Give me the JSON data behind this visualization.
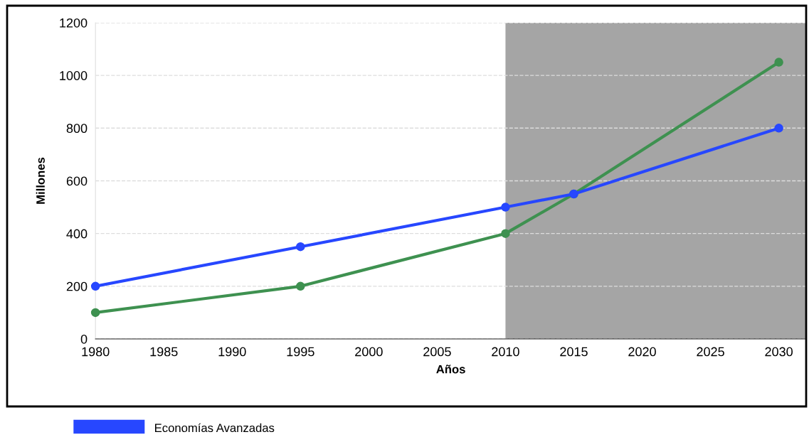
{
  "chart_data": {
    "type": "line",
    "xlabel": "Años",
    "ylabel": "Millones",
    "series": [
      {
        "name": "Economías Avanzadas",
        "color": "#2747ff",
        "x": [
          1980,
          1995,
          2010,
          2015,
          2030
        ],
        "values": [
          200,
          350,
          500,
          550,
          800
        ]
      },
      {
        "color": "#3e9150",
        "x": [
          1980,
          1995,
          2010,
          2015,
          2030
        ],
        "values": [
          100,
          200,
          400,
          550,
          1050
        ]
      }
    ],
    "xlim": [
      1980,
      2032
    ],
    "xticks": [
      1980,
      1985,
      1990,
      1995,
      2000,
      2005,
      2010,
      2015,
      2020,
      2025,
      2030
    ],
    "ylim": [
      0,
      1200
    ],
    "yticks": [
      0,
      200,
      400,
      600,
      800,
      1000,
      1200
    ],
    "bands": [
      {
        "axis": "x",
        "from": 2010,
        "to": 2032,
        "color": "#a5a5a5"
      }
    ],
    "grid": "y",
    "legend": "bottom",
    "marker": "circle",
    "line_style": "solid"
  }
}
